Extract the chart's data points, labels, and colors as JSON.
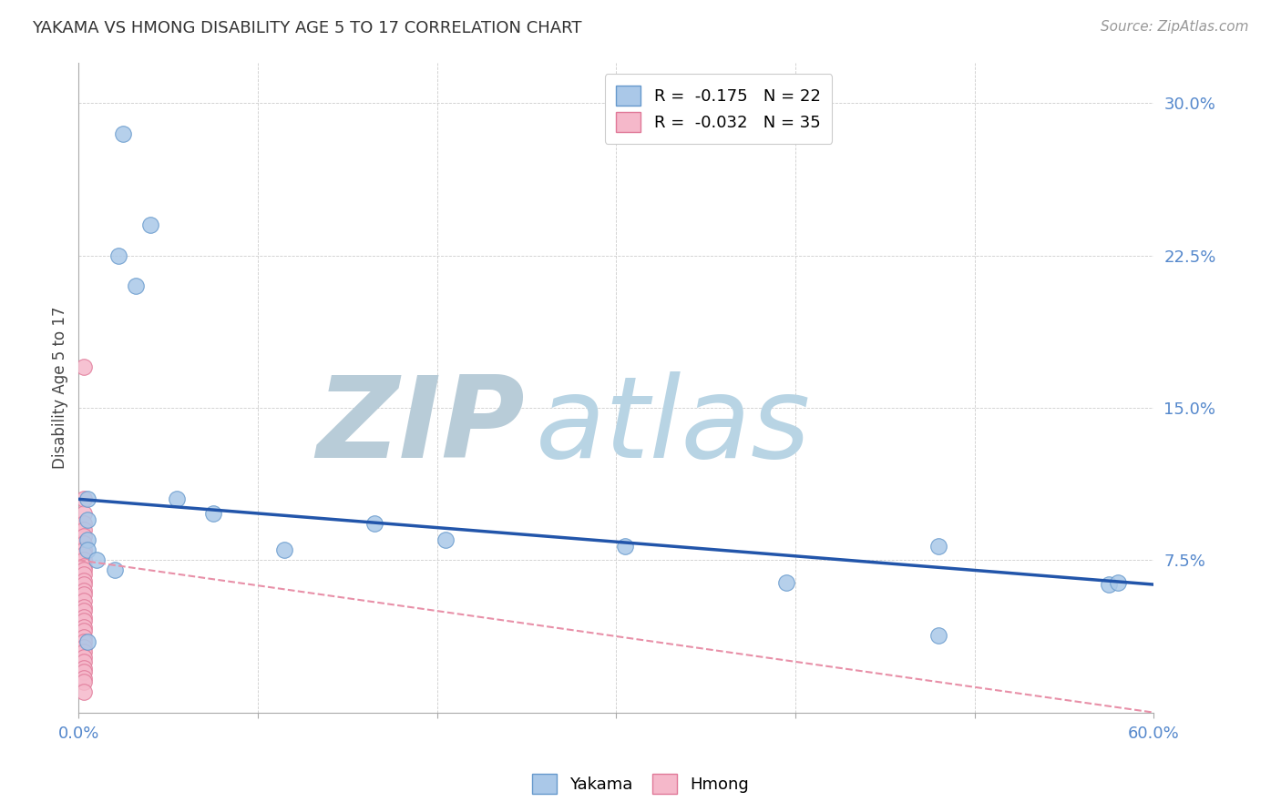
{
  "title": "YAKAMA VS HMONG DISABILITY AGE 5 TO 17 CORRELATION CHART",
  "source": "Source: ZipAtlas.com",
  "ylabel": "Disability Age 5 to 17",
  "yakama_R": -0.175,
  "yakama_N": 22,
  "hmong_R": -0.032,
  "hmong_N": 35,
  "xlim": [
    0.0,
    0.6
  ],
  "ylim": [
    0.0,
    0.32
  ],
  "xticks": [
    0.0,
    0.1,
    0.2,
    0.3,
    0.4,
    0.5,
    0.6
  ],
  "yticks": [
    0.0,
    0.075,
    0.15,
    0.225,
    0.3
  ],
  "ytick_labels": [
    "",
    "7.5%",
    "15.0%",
    "22.5%",
    "30.0%"
  ],
  "xtick_labels": [
    "0.0%",
    "",
    "",
    "",
    "",
    "",
    "60.0%"
  ],
  "yakama_color": "#aac8e8",
  "yakama_edge": "#6699cc",
  "hmong_color": "#f5b8ca",
  "hmong_edge": "#e07898",
  "trendline_yakama_color": "#2255aa",
  "trendline_hmong_color": "#e890a8",
  "watermark_color": "#ccdde8",
  "background_color": "#ffffff",
  "yakama_x": [
    0.025,
    0.04,
    0.022,
    0.032,
    0.005,
    0.005,
    0.005,
    0.005,
    0.01,
    0.02,
    0.075,
    0.165,
    0.205,
    0.115,
    0.305,
    0.395,
    0.575,
    0.48,
    0.58,
    0.48,
    0.005,
    0.055
  ],
  "yakama_y": [
    0.285,
    0.24,
    0.225,
    0.21,
    0.105,
    0.095,
    0.085,
    0.08,
    0.075,
    0.07,
    0.098,
    0.093,
    0.085,
    0.08,
    0.082,
    0.064,
    0.063,
    0.082,
    0.064,
    0.038,
    0.035,
    0.105
  ],
  "hmong_x": [
    0.003,
    0.003,
    0.003,
    0.003,
    0.003,
    0.003,
    0.003,
    0.003,
    0.003,
    0.003,
    0.003,
    0.003,
    0.003,
    0.003,
    0.003,
    0.003,
    0.003,
    0.003,
    0.003,
    0.003,
    0.003,
    0.003,
    0.003,
    0.003,
    0.003,
    0.003,
    0.003,
    0.003,
    0.003,
    0.003,
    0.003,
    0.003,
    0.003,
    0.003,
    0.003
  ],
  "hmong_y": [
    0.17,
    0.105,
    0.098,
    0.093,
    0.09,
    0.087,
    0.083,
    0.08,
    0.078,
    0.075,
    0.072,
    0.07,
    0.068,
    0.065,
    0.063,
    0.06,
    0.058,
    0.055,
    0.052,
    0.05,
    0.047,
    0.045,
    0.042,
    0.04,
    0.037,
    0.035,
    0.032,
    0.03,
    0.027,
    0.025,
    0.022,
    0.02,
    0.017,
    0.015,
    0.01
  ],
  "trendline_yakama_x0": 0.0,
  "trendline_yakama_y0": 0.105,
  "trendline_yakama_x1": 0.6,
  "trendline_yakama_y1": 0.063,
  "trendline_hmong_x0": 0.0,
  "trendline_hmong_y0": 0.075,
  "trendline_hmong_x1": 0.6,
  "trendline_hmong_y1": 0.0
}
